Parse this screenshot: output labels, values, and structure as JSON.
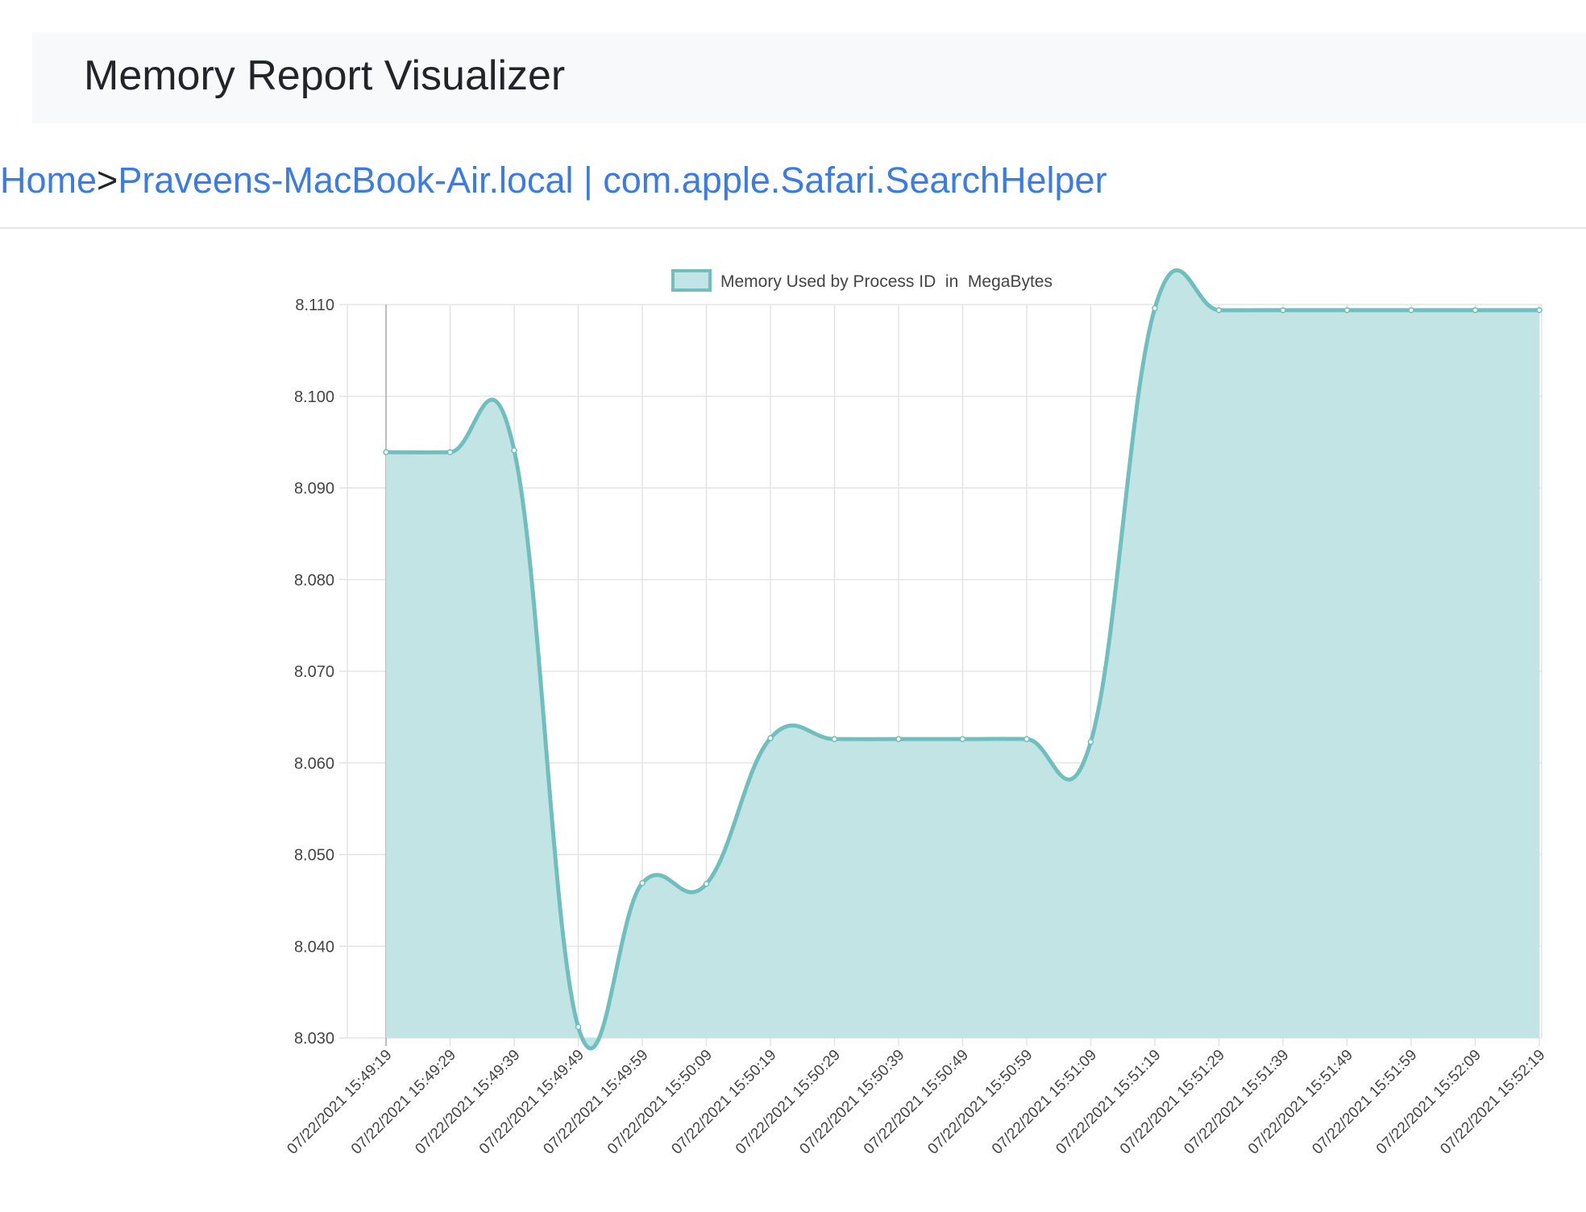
{
  "app": {
    "title": "Memory Report Visualizer"
  },
  "breadcrumb": {
    "home": "Home",
    "separator": ">",
    "current": "Praveens-MacBook-Air.local | com.apple.Safari.SearchHelper"
  },
  "colors": {
    "line": "#6fbfbf",
    "fill": "#c3e4e4",
    "grid": "#e0e0e0",
    "axis_text": "#444444"
  },
  "chart_data": {
    "type": "area",
    "legend": {
      "label": "Memory Used by Process ID  in  MegaBytes",
      "placement": "top-center"
    },
    "x": [
      "07/22/2021 15:49:19",
      "07/22/2021 15:49:29",
      "07/22/2021 15:49:39",
      "07/22/2021 15:49:49",
      "07/22/2021 15:49:59",
      "07/22/2021 15:50:09",
      "07/22/2021 15:50:19",
      "07/22/2021 15:50:29",
      "07/22/2021 15:50:39",
      "07/22/2021 15:50:49",
      "07/22/2021 15:50:59",
      "07/22/2021 15:51:09",
      "07/22/2021 15:51:19",
      "07/22/2021 15:51:29",
      "07/22/2021 15:51:39",
      "07/22/2021 15:51:49",
      "07/22/2021 15:51:59",
      "07/22/2021 15:52:09",
      "07/22/2021 15:52:19"
    ],
    "values": [
      8.0939,
      8.0939,
      8.0941,
      8.0312,
      8.0469,
      8.0468,
      8.0627,
      8.0626,
      8.0626,
      8.0626,
      8.0626,
      8.0623,
      8.1096,
      8.1094,
      8.1094,
      8.1094,
      8.1094,
      8.1094,
      8.1094
    ],
    "y_ticks": [
      "8.110",
      "8.100",
      "8.090",
      "8.080",
      "8.070",
      "8.060",
      "8.050",
      "8.040",
      "8.030"
    ],
    "ylim": [
      8.03,
      8.11
    ],
    "grid": true
  }
}
